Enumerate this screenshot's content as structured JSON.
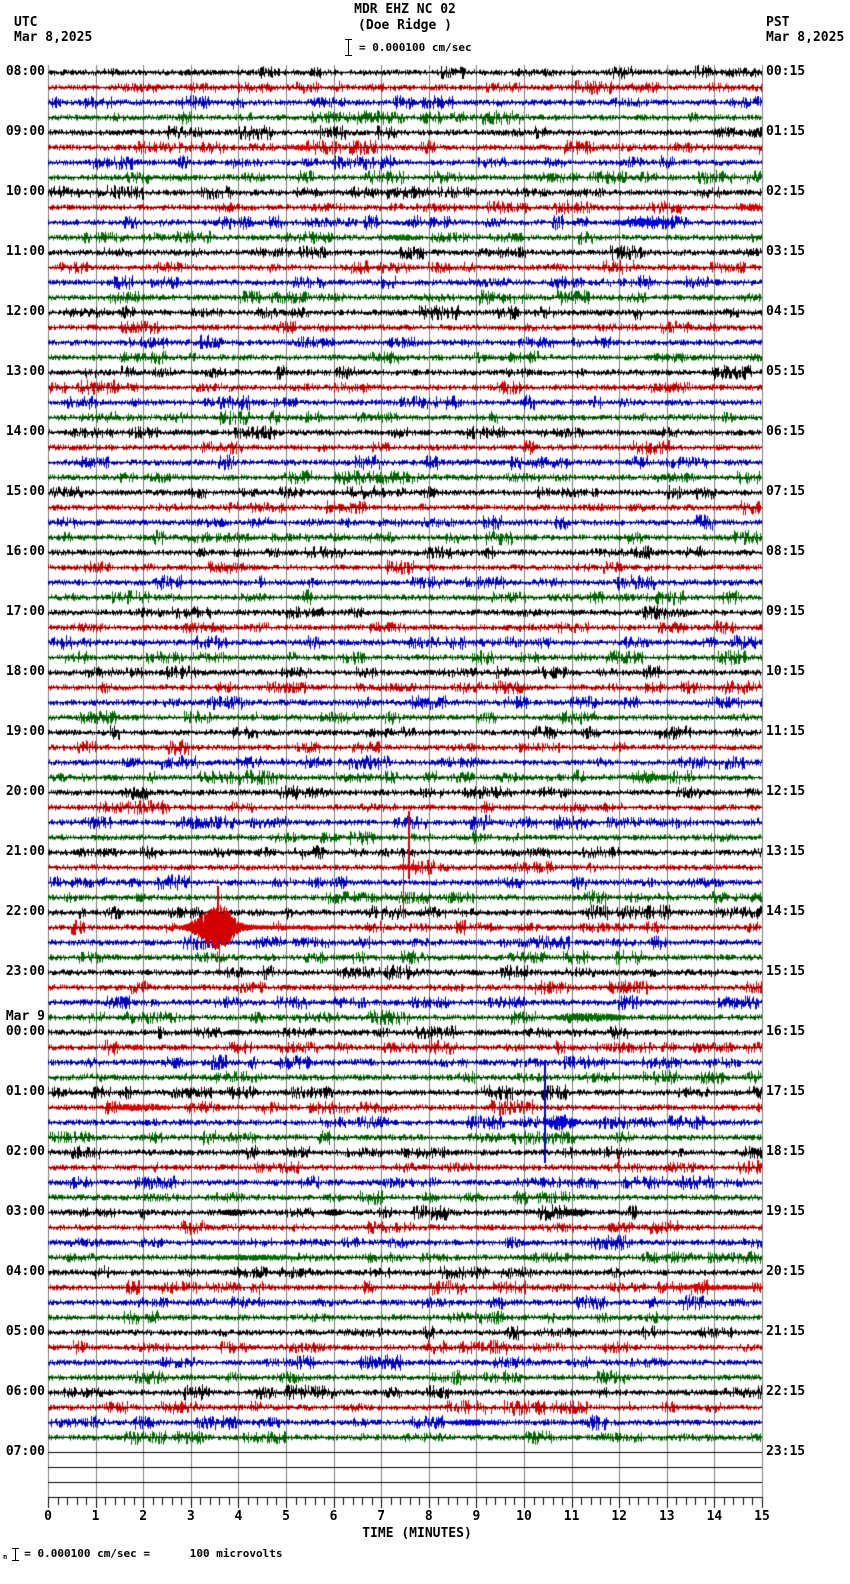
{
  "header": {
    "title_line1": "MDR EHZ NC 02",
    "title_line2": "(Doe Ridge )",
    "scale_label": "= 0.000100 cm/sec",
    "left_tz": "UTC",
    "left_date": "Mar 8,2025",
    "right_tz": "PST",
    "right_date": "Mar 8,2025"
  },
  "footer": {
    "prefix": "n",
    "text": "= 0.000100 cm/sec =      100 microvolts"
  },
  "colors": {
    "black": "#000000",
    "red": "#d40000",
    "blue": "#0000d4",
    "green": "#006b00",
    "grid": "#7d7d7d",
    "background": "#ffffff"
  },
  "chart_data": {
    "type": "helicorder",
    "station": "MDR EHZ NC 02",
    "location": "Doe Ridge",
    "start_time_utc": "08:00 Mar 8,2025",
    "end_time_utc": "08:00 Mar 9,2025",
    "minutes_per_row": 15,
    "rows": 96,
    "row_color_cycle": [
      "black",
      "red",
      "blue",
      "green"
    ],
    "flat_rows": [
      92,
      93,
      94,
      95
    ],
    "base_noise_amp": 1.7,
    "axis": {
      "label": "TIME (MINUTES)",
      "ticks": [
        "0",
        "1",
        "2",
        "3",
        "4",
        "5",
        "6",
        "7",
        "8",
        "9",
        "10",
        "11",
        "12",
        "13",
        "14",
        "15"
      ],
      "minor_per_major": 5,
      "range_minutes": [
        0,
        15
      ]
    },
    "left_labels": [
      {
        "row": 0,
        "text": "08:00"
      },
      {
        "row": 4,
        "text": "09:00"
      },
      {
        "row": 8,
        "text": "10:00"
      },
      {
        "row": 12,
        "text": "11:00"
      },
      {
        "row": 16,
        "text": "12:00"
      },
      {
        "row": 20,
        "text": "13:00"
      },
      {
        "row": 24,
        "text": "14:00"
      },
      {
        "row": 28,
        "text": "15:00"
      },
      {
        "row": 32,
        "text": "16:00"
      },
      {
        "row": 36,
        "text": "17:00"
      },
      {
        "row": 40,
        "text": "18:00"
      },
      {
        "row": 44,
        "text": "19:00"
      },
      {
        "row": 48,
        "text": "20:00"
      },
      {
        "row": 52,
        "text": "21:00"
      },
      {
        "row": 56,
        "text": "22:00"
      },
      {
        "row": 60,
        "text": "23:00"
      },
      {
        "row": 63,
        "text": "Mar 9",
        "marker": true
      },
      {
        "row": 64,
        "text": "00:00"
      },
      {
        "row": 68,
        "text": "01:00"
      },
      {
        "row": 72,
        "text": "02:00"
      },
      {
        "row": 76,
        "text": "03:00"
      },
      {
        "row": 80,
        "text": "04:00"
      },
      {
        "row": 84,
        "text": "05:00"
      },
      {
        "row": 88,
        "text": "06:00"
      },
      {
        "row": 92,
        "text": "07:00"
      }
    ],
    "right_labels": [
      {
        "row": 0,
        "text": "00:15"
      },
      {
        "row": 4,
        "text": "01:15"
      },
      {
        "row": 8,
        "text": "02:15"
      },
      {
        "row": 12,
        "text": "03:15"
      },
      {
        "row": 16,
        "text": "04:15"
      },
      {
        "row": 20,
        "text": "05:15"
      },
      {
        "row": 24,
        "text": "06:15"
      },
      {
        "row": 28,
        "text": "07:15"
      },
      {
        "row": 32,
        "text": "08:15"
      },
      {
        "row": 36,
        "text": "09:15"
      },
      {
        "row": 40,
        "text": "10:15"
      },
      {
        "row": 44,
        "text": "11:15"
      },
      {
        "row": 48,
        "text": "12:15"
      },
      {
        "row": 52,
        "text": "13:15"
      },
      {
        "row": 56,
        "text": "14:15"
      },
      {
        "row": 60,
        "text": "15:15"
      },
      {
        "row": 64,
        "text": "16:15"
      },
      {
        "row": 68,
        "text": "17:15"
      },
      {
        "row": 72,
        "text": "18:15"
      },
      {
        "row": 76,
        "text": "19:15"
      },
      {
        "row": 80,
        "text": "20:15"
      },
      {
        "row": 84,
        "text": "21:15"
      },
      {
        "row": 88,
        "text": "22:15"
      },
      {
        "row": 92,
        "text": "23:15"
      }
    ],
    "events": [
      {
        "row": 5,
        "kind": "burst",
        "t0": 5.02,
        "t1": 5.62,
        "amp": 3
      },
      {
        "row": 9,
        "kind": "burst",
        "t0": 14.5,
        "t1": 15,
        "amp": 3.5
      },
      {
        "row": 10,
        "kind": "burst",
        "t0": 11.9,
        "t1": 13.05,
        "amp": 4
      },
      {
        "row": 11,
        "kind": "burst",
        "t0": 7.1,
        "t1": 7.75,
        "amp": 3
      },
      {
        "row": 47,
        "kind": "burst",
        "t0": 12.1,
        "t1": 13.15,
        "amp": 3
      },
      {
        "row": 53,
        "kind": "spike",
        "t": 7.56,
        "up": 56,
        "down": 11,
        "width": 2
      },
      {
        "row": 53,
        "kind": "spike",
        "t": 7.46,
        "up": 10,
        "down": 51,
        "width": 1
      },
      {
        "row": 53,
        "kind": "burst",
        "t0": 7.3,
        "t1": 7.85,
        "amp": 3
      },
      {
        "row": 57,
        "kind": "quake",
        "t0": 2.55,
        "peak": 3.57,
        "t1": 4.3,
        "coda_end": 5.9,
        "amp": 21,
        "spike_up": 41,
        "spike_down": 47
      },
      {
        "row": 63,
        "kind": "burst",
        "t0": 10.5,
        "t1": 12.2,
        "amp": 4.5
      },
      {
        "row": 64,
        "kind": "burst",
        "t0": 3.68,
        "t1": 4.15,
        "amp": 2.5
      },
      {
        "row": 65,
        "kind": "burst",
        "t0": 1.73,
        "t1": 2.0,
        "amp": 3
      },
      {
        "row": 69,
        "kind": "burst",
        "t0": 1.32,
        "t1": 2.55,
        "amp": 4
      },
      {
        "row": 70,
        "kind": "spike",
        "t": 10.43,
        "up": 62,
        "down": 40,
        "width": 2
      },
      {
        "row": 70,
        "kind": "burst",
        "t0": 10.4,
        "t1": 11.15,
        "amp": 8
      },
      {
        "row": 73,
        "kind": "spike",
        "t": 11.97,
        "up": 14,
        "down": 3,
        "width": 1
      },
      {
        "row": 76,
        "kind": "burst",
        "t0": 3.6,
        "t1": 4.2,
        "amp": 3.5
      },
      {
        "row": 76,
        "kind": "burst",
        "t0": 5.78,
        "t1": 6.2,
        "amp": 3
      },
      {
        "row": 76,
        "kind": "burst",
        "t0": 10.6,
        "t1": 11.4,
        "amp": 3
      },
      {
        "row": 79,
        "kind": "burst",
        "t0": 3.3,
        "t1": 5.2,
        "amp": 2.6
      },
      {
        "row": 81,
        "kind": "burst",
        "t0": 12.8,
        "t1": 15,
        "amp": 2.6
      },
      {
        "row": 87,
        "kind": "spike",
        "t": 9.6,
        "up": 7,
        "down": 6,
        "width": 1
      },
      {
        "row": 89,
        "kind": "spike",
        "t": 12.2,
        "up": 6,
        "down": 2,
        "width": 1
      },
      {
        "row": 90,
        "kind": "burst",
        "t0": 8.4,
        "t1": 9.45,
        "amp": 3
      }
    ]
  }
}
